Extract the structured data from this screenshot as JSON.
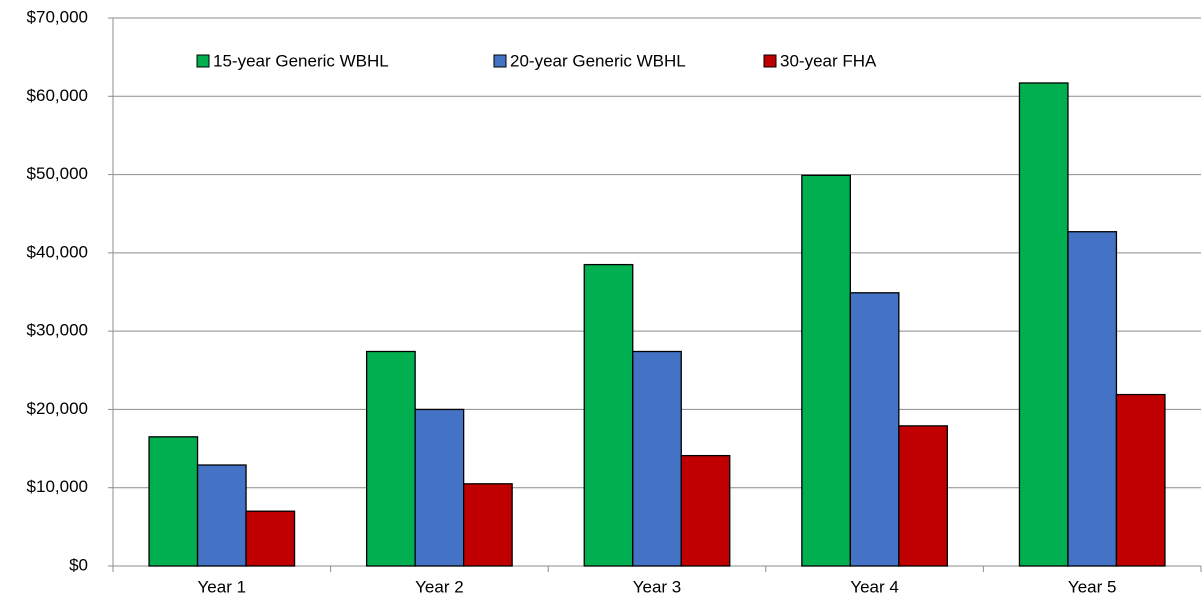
{
  "chart_data": {
    "type": "bar",
    "categories": [
      "Year 1",
      "Year 2",
      "Year 3",
      "Year 4",
      "Year 5"
    ],
    "series": [
      {
        "name": "15-year Generic WBHL",
        "color": "#00b050",
        "values": [
          16500,
          27400,
          38500,
          49900,
          61700
        ]
      },
      {
        "name": "20-year Generic WBHL",
        "color": "#4472c4",
        "values": [
          12900,
          20000,
          27400,
          34900,
          42700
        ]
      },
      {
        "name": "30-year FHA",
        "color": "#c00000",
        "values": [
          7000,
          10500,
          14100,
          17900,
          21900
        ]
      }
    ],
    "ylim": [
      0,
      70000
    ],
    "yticks": [
      {
        "value": 0,
        "label": "$0"
      },
      {
        "value": 10000,
        "label": "$10,000"
      },
      {
        "value": 20000,
        "label": "$20,000"
      },
      {
        "value": 30000,
        "label": "$30,000"
      },
      {
        "value": 40000,
        "label": "$40,000"
      },
      {
        "value": 50000,
        "label": "$50,000"
      },
      {
        "value": 60000,
        "label": "$60,000"
      },
      {
        "value": 70000,
        "label": "$70,000"
      }
    ],
    "grid": true,
    "legend": "top"
  }
}
